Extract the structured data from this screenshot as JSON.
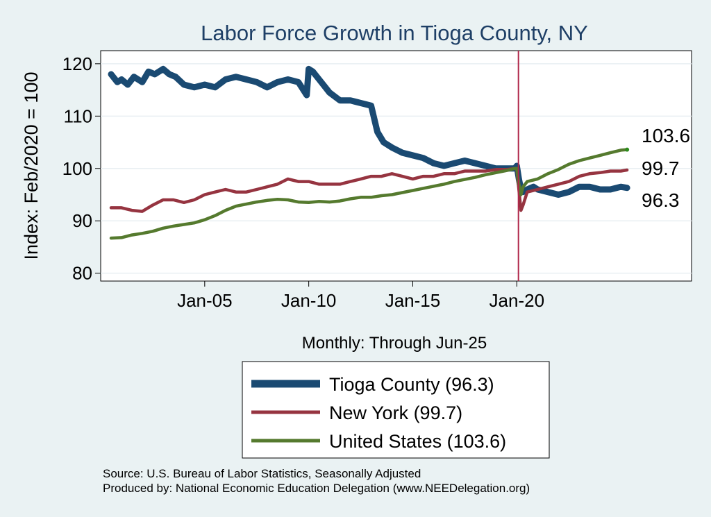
{
  "chart_data": {
    "type": "line",
    "title": "Labor Force Growth in Tioga  County, NY",
    "ylabel": "Index: Feb/2020 = 100",
    "xlabel": "Monthly: Through Jun-25",
    "ylim": [
      78.5,
      122.5
    ],
    "yticks": [
      80,
      90,
      100,
      110,
      120
    ],
    "xlim": [
      2000.0,
      2028.4
    ],
    "xticks": [
      {
        "value": 2005.0,
        "label": "Jan-05"
      },
      {
        "value": 2010.0,
        "label": "Jan-10"
      },
      {
        "value": 2015.0,
        "label": "Jan-15"
      },
      {
        "value": 2020.0,
        "label": "Jan-20"
      }
    ],
    "reference_line": {
      "x": 2020.08,
      "color": "#b0274a"
    },
    "series": [
      {
        "name": "Tioga  County",
        "legend": "Tioga  County (96.3)",
        "end_label": "96.3",
        "color": "#1a4a72",
        "x": [
          2000.5,
          2000.8,
          2001.0,
          2001.3,
          2001.6,
          2002.0,
          2002.3,
          2002.6,
          2003.0,
          2003.3,
          2003.6,
          2004.0,
          2004.5,
          2005.0,
          2005.5,
          2006.0,
          2006.5,
          2007.0,
          2007.5,
          2008.0,
          2008.5,
          2009.0,
          2009.5,
          2009.9,
          2010.0,
          2010.2,
          2010.5,
          2010.8,
          2011.0,
          2011.5,
          2012.0,
          2012.5,
          2013.0,
          2013.3,
          2013.6,
          2014.0,
          2014.5,
          2015.0,
          2015.5,
          2016.0,
          2016.5,
          2017.0,
          2017.5,
          2018.0,
          2018.5,
          2019.0,
          2019.5,
          2019.9,
          2020.0,
          2020.1,
          2020.2,
          2020.3,
          2020.5,
          2020.8,
          2021.0,
          2021.5,
          2022.0,
          2022.5,
          2023.0,
          2023.5,
          2024.0,
          2024.5,
          2025.0,
          2025.3
        ],
        "values": [
          118,
          116.5,
          117,
          116,
          117.5,
          116.5,
          118.5,
          118,
          119,
          118,
          117.5,
          116,
          115.5,
          116,
          115.5,
          117,
          117.5,
          117,
          116.5,
          115.5,
          116.5,
          117,
          116.5,
          114,
          119,
          118.5,
          117,
          115.5,
          114.5,
          113,
          113,
          112.5,
          112,
          107,
          105,
          104,
          103,
          102.5,
          102,
          101,
          100.5,
          101,
          101.5,
          101,
          100.5,
          100,
          100,
          100,
          100.5,
          98,
          96,
          95.5,
          96,
          96.5,
          96,
          95.5,
          95,
          95.5,
          96.5,
          96.5,
          96,
          96,
          96.5,
          96.3
        ]
      },
      {
        "name": "New York",
        "legend": "New York (99.7)",
        "end_label": "99.7",
        "color": "#963440",
        "x": [
          2000.5,
          2001.0,
          2001.5,
          2002.0,
          2002.5,
          2003.0,
          2003.5,
          2004.0,
          2004.5,
          2005.0,
          2005.5,
          2006.0,
          2006.5,
          2007.0,
          2007.5,
          2008.0,
          2008.5,
          2009.0,
          2009.5,
          2010.0,
          2010.5,
          2011.0,
          2011.5,
          2012.0,
          2012.5,
          2013.0,
          2013.5,
          2014.0,
          2014.5,
          2015.0,
          2015.5,
          2016.0,
          2016.5,
          2017.0,
          2017.5,
          2018.0,
          2018.5,
          2019.0,
          2019.5,
          2019.9,
          2020.0,
          2020.1,
          2020.2,
          2020.3,
          2020.5,
          2021.0,
          2021.5,
          2022.0,
          2022.5,
          2023.0,
          2023.5,
          2024.0,
          2024.5,
          2025.0,
          2025.3
        ],
        "values": [
          92.5,
          92.5,
          92,
          91.8,
          93,
          94,
          94,
          93.5,
          94,
          95,
          95.5,
          96,
          95.5,
          95.5,
          96,
          96.5,
          97,
          98,
          97.5,
          97.5,
          97,
          97,
          97,
          97.5,
          98,
          98.5,
          98.5,
          99,
          98.5,
          98,
          98.5,
          98.5,
          99,
          99,
          99.5,
          99.5,
          99.5,
          99.8,
          99.8,
          100,
          100,
          96,
          92,
          93,
          95.5,
          96,
          96.5,
          97,
          97.5,
          98.5,
          99,
          99.2,
          99.5,
          99.5,
          99.7
        ]
      },
      {
        "name": "United States",
        "legend": "United States (103.6)",
        "end_label": "103.6",
        "color": "#557a2e",
        "x": [
          2000.5,
          2001.0,
          2001.5,
          2002.0,
          2002.5,
          2003.0,
          2003.5,
          2004.0,
          2004.5,
          2005.0,
          2005.5,
          2006.0,
          2006.5,
          2007.0,
          2007.5,
          2008.0,
          2008.5,
          2009.0,
          2009.5,
          2010.0,
          2010.5,
          2011.0,
          2011.5,
          2012.0,
          2012.5,
          2013.0,
          2013.5,
          2014.0,
          2014.5,
          2015.0,
          2015.5,
          2016.0,
          2016.5,
          2017.0,
          2017.5,
          2018.0,
          2018.5,
          2019.0,
          2019.5,
          2019.9,
          2020.0,
          2020.1,
          2020.2,
          2020.3,
          2020.5,
          2021.0,
          2021.5,
          2022.0,
          2022.5,
          2023.0,
          2023.5,
          2024.0,
          2024.5,
          2025.0,
          2025.3
        ],
        "values": [
          86.7,
          86.8,
          87.3,
          87.6,
          88,
          88.6,
          89,
          89.3,
          89.6,
          90.2,
          91,
          92,
          92.8,
          93.2,
          93.6,
          93.9,
          94.1,
          94,
          93.6,
          93.5,
          93.7,
          93.6,
          93.8,
          94.2,
          94.5,
          94.5,
          94.8,
          95,
          95.4,
          95.8,
          96.2,
          96.6,
          97,
          97.5,
          97.9,
          98.3,
          98.8,
          99.2,
          99.6,
          100,
          100,
          97,
          95,
          96.5,
          97.5,
          98,
          99,
          99.8,
          100.8,
          101.5,
          102,
          102.5,
          103,
          103.5,
          103.6
        ]
      }
    ]
  },
  "source_line1": "Source: U.S. Bureau of Labor Statistics, Seasonally Adjusted",
  "source_line2": "Produced by: National Economic Education Delegation (www.NEEDelegation.org)"
}
